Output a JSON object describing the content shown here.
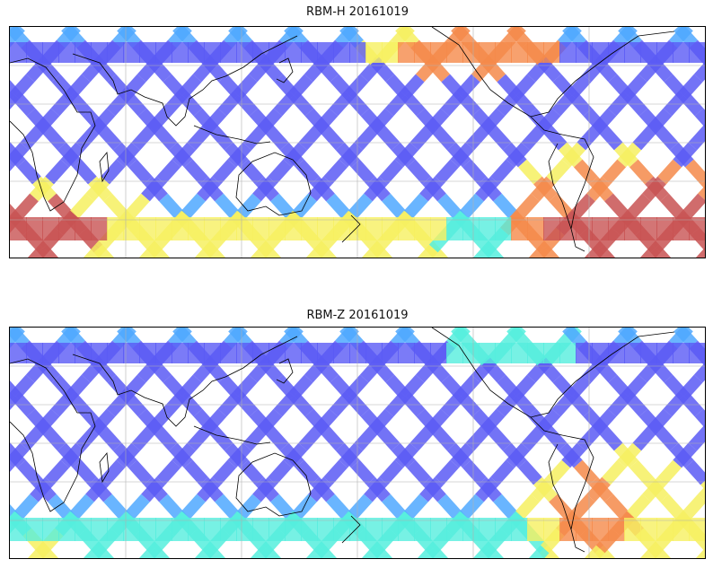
{
  "figure": {
    "panels": [
      {
        "title": "RBM-H 20161019",
        "variable": "RBM-H",
        "date": "20161019",
        "colormap": "jet",
        "grid": true,
        "hotspots": [
          {
            "region": "south-atlantic-south-america",
            "level": "high"
          },
          {
            "region": "southern-ocean-south-africa",
            "level": "high"
          },
          {
            "region": "north-pacific-near-north-america",
            "level": "high"
          },
          {
            "region": "southern-ocean-south-of-australia",
            "level": "medium"
          }
        ]
      },
      {
        "title": "RBM-Z 20161019",
        "variable": "RBM-Z",
        "date": "20161019",
        "colormap": "jet",
        "grid": true,
        "hotspots": [
          {
            "region": "south-atlantic-south-america",
            "level": "medium"
          },
          {
            "region": "southern-ocean-band",
            "level": "low"
          }
        ]
      }
    ],
    "colors": {
      "low": "#5a5af5",
      "low_mid": "#4fa8ff",
      "mid": "#55eedd",
      "mid_high": "#f6f060",
      "high": "#f58a4a",
      "very_high": "#c85252"
    }
  }
}
